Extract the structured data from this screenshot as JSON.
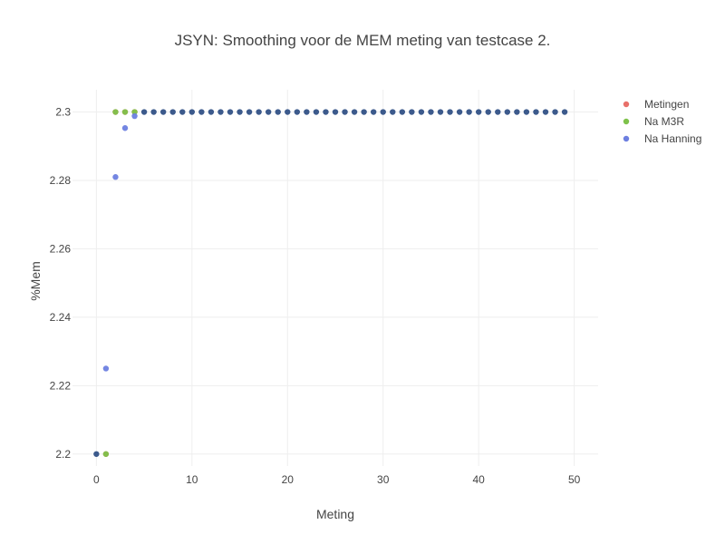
{
  "chart_data": {
    "type": "scatter",
    "title": "JSYN: Smoothing voor de MEM meting van testcase 2.",
    "xlabel": "Meting",
    "ylabel": "%Mem",
    "xlim": [
      -2.5,
      52.5
    ],
    "ylim": [
      2.1965,
      2.3065
    ],
    "x_ticks": [
      0,
      10,
      20,
      30,
      40,
      50
    ],
    "y_ticks": [
      2.2,
      2.22,
      2.24,
      2.26,
      2.28,
      2.3
    ],
    "y_tick_labels": [
      "2.2",
      "2.22",
      "2.24",
      "2.26",
      "2.28",
      "2.3"
    ],
    "grid": true,
    "legend_position": "top-right",
    "series": [
      {
        "name": "Metingen",
        "color": "#e8706a",
        "x": [
          0,
          1,
          2,
          3,
          4,
          5,
          6,
          7,
          8,
          9,
          10,
          11,
          12,
          13,
          14,
          15,
          16,
          17,
          18,
          19,
          20,
          21,
          22,
          23,
          24,
          25,
          26,
          27,
          28,
          29,
          30,
          31,
          32,
          33,
          34,
          35,
          36,
          37,
          38,
          39,
          40,
          41,
          42,
          43,
          44,
          45,
          46,
          47,
          48,
          49
        ],
        "y": [
          2.2,
          2.2,
          2.3,
          2.3,
          2.3,
          2.3,
          2.3,
          2.3,
          2.3,
          2.3,
          2.3,
          2.3,
          2.3,
          2.3,
          2.3,
          2.3,
          2.3,
          2.3,
          2.3,
          2.3,
          2.3,
          2.3,
          2.3,
          2.3,
          2.3,
          2.3,
          2.3,
          2.3,
          2.3,
          2.3,
          2.3,
          2.3,
          2.3,
          2.3,
          2.3,
          2.3,
          2.3,
          2.3,
          2.3,
          2.3,
          2.3,
          2.3,
          2.3,
          2.3,
          2.3,
          2.3,
          2.3,
          2.3,
          2.3,
          2.3
        ]
      },
      {
        "name": "Na M3R",
        "color": "#7ec24a",
        "x": [
          0,
          1,
          2,
          3,
          4,
          5,
          6,
          7,
          8,
          9,
          10,
          11,
          12,
          13,
          14,
          15,
          16,
          17,
          18,
          19,
          20,
          21,
          22,
          23,
          24,
          25,
          26,
          27,
          28,
          29,
          30,
          31,
          32,
          33,
          34,
          35,
          36,
          37,
          38,
          39,
          40,
          41,
          42,
          43,
          44,
          45,
          46,
          47,
          48,
          49
        ],
        "y": [
          2.2,
          2.2,
          2.3,
          2.3,
          2.3,
          2.3,
          2.3,
          2.3,
          2.3,
          2.3,
          2.3,
          2.3,
          2.3,
          2.3,
          2.3,
          2.3,
          2.3,
          2.3,
          2.3,
          2.3,
          2.3,
          2.3,
          2.3,
          2.3,
          2.3,
          2.3,
          2.3,
          2.3,
          2.3,
          2.3,
          2.3,
          2.3,
          2.3,
          2.3,
          2.3,
          2.3,
          2.3,
          2.3,
          2.3,
          2.3,
          2.3,
          2.3,
          2.3,
          2.3,
          2.3,
          2.3,
          2.3,
          2.3,
          2.3,
          2.3
        ]
      },
      {
        "name": "Na Hanning",
        "color": "#6d7fe0",
        "x": [
          0,
          1,
          2,
          3,
          4,
          5,
          6,
          7,
          8,
          9,
          10,
          11,
          12,
          13,
          14,
          15,
          16,
          17,
          18,
          19,
          20,
          21,
          22,
          23,
          24,
          25,
          26,
          27,
          28,
          29,
          30,
          31,
          32,
          33,
          34,
          35,
          36,
          37,
          38,
          39,
          40,
          41,
          42,
          43,
          44,
          45,
          46,
          47,
          48,
          49
        ],
        "y": [
          2.2,
          2.225,
          2.281,
          2.2953,
          2.2988,
          2.3,
          2.3,
          2.3,
          2.3,
          2.3,
          2.3,
          2.3,
          2.3,
          2.3,
          2.3,
          2.3,
          2.3,
          2.3,
          2.3,
          2.3,
          2.3,
          2.3,
          2.3,
          2.3,
          2.3,
          2.3,
          2.3,
          2.3,
          2.3,
          2.3,
          2.3,
          2.3,
          2.3,
          2.3,
          2.3,
          2.3,
          2.3,
          2.3,
          2.3,
          2.3,
          2.3,
          2.3,
          2.3,
          2.3,
          2.3,
          2.3,
          2.3,
          2.3,
          2.3,
          2.3
        ]
      }
    ],
    "overlap_color": "#3c5a8c"
  }
}
